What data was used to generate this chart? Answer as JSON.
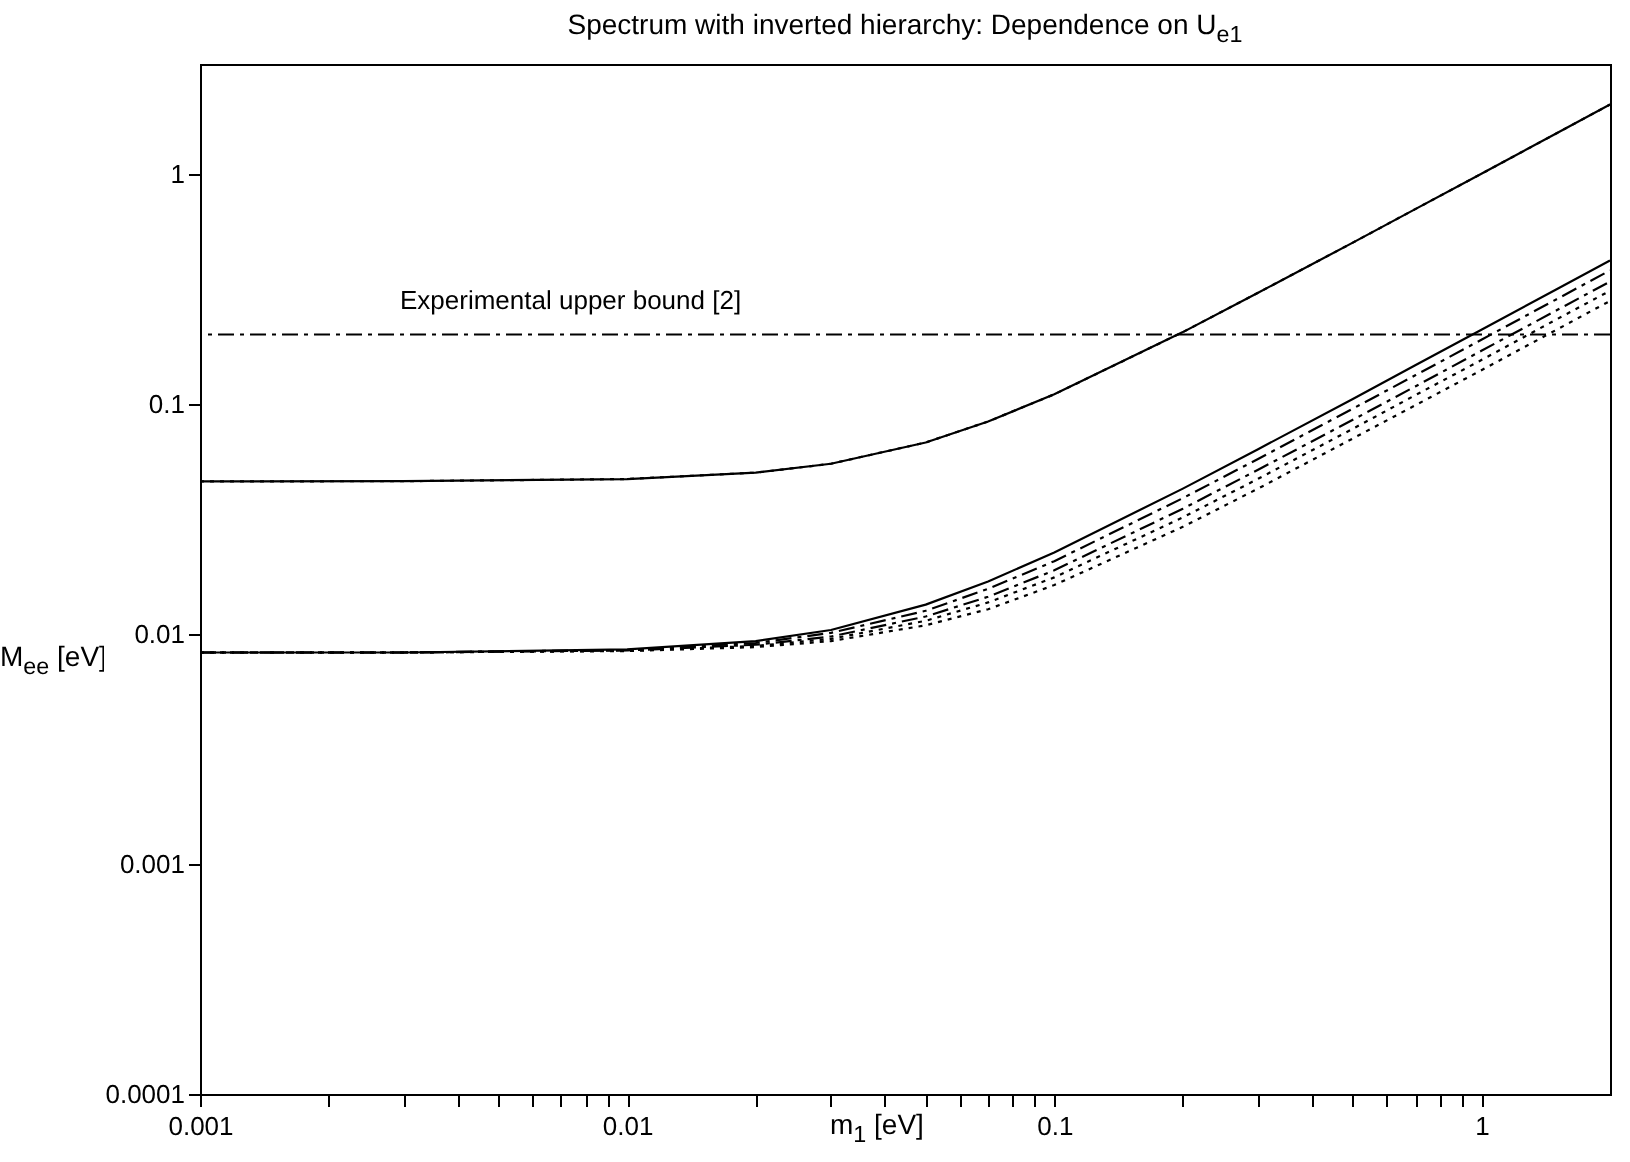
{
  "chart_data": {
    "type": "line",
    "title": "Spectrum with inverted hierarchy: Dependence on U$_{e1}$",
    "xlabel": "m$_{1}$ [eV]",
    "ylabel": "M$_{ee}$ [eV]",
    "log": "xy",
    "grid": false,
    "marker": "none",
    "x": [
      0.001,
      0.003,
      0.01,
      0.02,
      0.03,
      0.05,
      0.07,
      0.1,
      0.2,
      0.3,
      0.5,
      0.7,
      1,
      1.5,
      2
    ],
    "xlim": [
      0.001,
      2
    ],
    "ylim": [
      0.0001,
      3
    ],
    "xticks": [
      0.001,
      {
        "value": 0.002,
        "label": null
      },
      {
        "value": 0.003,
        "label": null
      },
      {
        "value": 0.004,
        "label": null
      },
      {
        "value": 0.005,
        "label": null
      },
      {
        "value": 0.006,
        "label": null
      },
      {
        "value": 0.007,
        "label": null
      },
      {
        "value": 0.008,
        "label": null
      },
      {
        "value": 0.009,
        "label": null
      },
      0.01,
      {
        "value": 0.02,
        "label": null
      },
      {
        "value": 0.03,
        "label": null
      },
      {
        "value": 0.04,
        "label": null
      },
      {
        "value": 0.05,
        "label": null
      },
      {
        "value": 0.06,
        "label": null
      },
      {
        "value": 0.07,
        "label": null
      },
      {
        "value": 0.08,
        "label": null
      },
      {
        "value": 0.09,
        "label": null
      },
      0.1,
      {
        "value": 0.2,
        "label": null
      },
      {
        "value": 0.3,
        "label": null
      },
      {
        "value": 0.4,
        "label": null
      },
      {
        "value": 0.5,
        "label": null
      },
      {
        "value": 0.6,
        "label": null
      },
      {
        "value": 0.7,
        "label": null
      },
      {
        "value": 0.8,
        "label": null
      },
      {
        "value": 0.9,
        "label": null
      },
      1
    ],
    "yticks": [
      0.0001,
      0.001,
      0.01,
      0.1,
      1
    ],
    "series": [
      {
        "color": "#000000",
        "line_style": "solid",
        "values": [
          0.046,
          0.0461,
          0.0471,
          0.0502,
          0.0549,
          0.0679,
          0.0838,
          0.11,
          0.205,
          0.304,
          0.502,
          0.702,
          1.0,
          1.5,
          2.0
        ]
      },
      {
        "color": "#000000",
        "line_style": "dotted",
        "values": [
          0.046,
          0.0461,
          0.0471,
          0.0502,
          0.0549,
          0.0679,
          0.0838,
          0.11,
          0.205,
          0.304,
          0.502,
          0.702,
          1.0,
          1.5,
          2.0
        ]
      },
      {
        "color": "#000000",
        "line_style": "solid",
        "values": [
          0.0083,
          0.0083,
          0.00856,
          0.0093,
          0.0104,
          0.0134,
          0.0169,
          0.0226,
          0.0428,
          0.0635,
          0.105,
          0.147,
          0.21,
          0.315,
          0.42
        ]
      },
      {
        "color": "#000000",
        "line_style": "dashed",
        "values": [
          0.0083,
          0.0083,
          0.00851,
          0.00913,
          0.0101,
          0.0126,
          0.0157,
          0.0207,
          0.0389,
          0.0576,
          0.0953,
          0.133,
          0.19,
          0.285,
          0.38
        ]
      },
      {
        "color": "#000000",
        "line_style": "dashed",
        "values": [
          0.0083,
          0.0083,
          0.00847,
          0.00897,
          0.00974,
          0.0119,
          0.0145,
          0.0189,
          0.035,
          0.0517,
          0.0852,
          0.119,
          0.17,
          0.255,
          0.34
        ]
      },
      {
        "color": "#000000",
        "line_style": "dotted",
        "values": [
          0.0083,
          0.0083,
          0.00845,
          0.00886,
          0.00951,
          0.0114,
          0.0137,
          0.0176,
          0.0321,
          0.0472,
          0.0779,
          0.109,
          0.155,
          0.233,
          0.31
        ]
      },
      {
        "color": "#000000",
        "line_style": "dotted",
        "values": [
          0.0083,
          0.0083,
          0.00842,
          0.00876,
          0.0093,
          0.0109,
          0.0128,
          0.0163,
          0.0292,
          0.0428,
          0.0707,
          0.0985,
          0.14,
          0.21,
          0.28
        ]
      }
    ],
    "ref_lines": [
      {
        "axis": "y",
        "value": 0.2,
        "label": "Experimental upper bound [2]",
        "line_style": "dashed",
        "color": "#000000"
      }
    ]
  }
}
